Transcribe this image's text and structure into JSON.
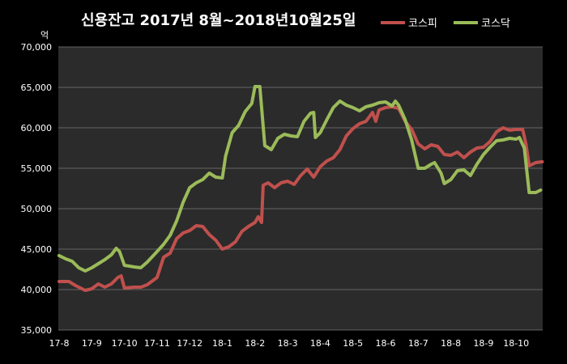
{
  "chart_data": {
    "type": "line",
    "title": "신용잔고 2017년 8월~2018년10월25일",
    "ylabel": "억",
    "xlabel": "",
    "ylim": [
      35000,
      70000
    ],
    "yticks": [
      35000,
      40000,
      45000,
      50000,
      55000,
      60000,
      65000,
      70000
    ],
    "ytick_labels": [
      "35,000",
      "40,000",
      "45,000",
      "50,000",
      "55,000",
      "60,000",
      "65,000",
      "70,000"
    ],
    "categories": [
      "17-8",
      "17-9",
      "17-10",
      "17-11",
      "17-12",
      "18-1",
      "18-2",
      "18-3",
      "18-4",
      "18-5",
      "18-6",
      "18-7",
      "18-8",
      "18-9",
      "18-10"
    ],
    "grid": true,
    "legend_position": "top-right",
    "series": [
      {
        "name": "코스피",
        "color": "#c0504d",
        "values": [
          [
            0.0,
            41000
          ],
          [
            0.3,
            41000
          ],
          [
            0.5,
            40500
          ],
          [
            0.8,
            39900
          ],
          [
            1.0,
            40100
          ],
          [
            1.2,
            40700
          ],
          [
            1.4,
            40300
          ],
          [
            1.6,
            40700
          ],
          [
            1.8,
            41500
          ],
          [
            1.9,
            41700
          ],
          [
            2.0,
            40200
          ],
          [
            2.3,
            40300
          ],
          [
            2.5,
            40300
          ],
          [
            2.7,
            40600
          ],
          [
            3.0,
            41500
          ],
          [
            3.2,
            44000
          ],
          [
            3.4,
            44500
          ],
          [
            3.6,
            46300
          ],
          [
            3.8,
            47000
          ],
          [
            4.0,
            47300
          ],
          [
            4.2,
            47900
          ],
          [
            4.4,
            47800
          ],
          [
            4.6,
            46800
          ],
          [
            4.8,
            46100
          ],
          [
            5.0,
            45000
          ],
          [
            5.2,
            45300
          ],
          [
            5.4,
            45900
          ],
          [
            5.6,
            47200
          ],
          [
            5.8,
            47800
          ],
          [
            6.0,
            48300
          ],
          [
            6.1,
            49000
          ],
          [
            6.2,
            48300
          ],
          [
            6.25,
            52900
          ],
          [
            6.4,
            53200
          ],
          [
            6.6,
            52600
          ],
          [
            6.8,
            53200
          ],
          [
            7.0,
            53400
          ],
          [
            7.2,
            53000
          ],
          [
            7.4,
            54100
          ],
          [
            7.6,
            54900
          ],
          [
            7.8,
            53900
          ],
          [
            8.0,
            55200
          ],
          [
            8.2,
            55900
          ],
          [
            8.4,
            56300
          ],
          [
            8.6,
            57300
          ],
          [
            8.8,
            59000
          ],
          [
            9.0,
            59900
          ],
          [
            9.2,
            60500
          ],
          [
            9.4,
            60800
          ],
          [
            9.6,
            61900
          ],
          [
            9.7,
            60800
          ],
          [
            9.8,
            62200
          ],
          [
            10.0,
            62500
          ],
          [
            10.2,
            62600
          ],
          [
            10.4,
            62400
          ],
          [
            10.6,
            60800
          ],
          [
            10.8,
            59800
          ],
          [
            11.0,
            58000
          ],
          [
            11.2,
            57400
          ],
          [
            11.4,
            57900
          ],
          [
            11.6,
            57700
          ],
          [
            11.8,
            56700
          ],
          [
            12.0,
            56600
          ],
          [
            12.2,
            57000
          ],
          [
            12.4,
            56300
          ],
          [
            12.6,
            57000
          ],
          [
            12.8,
            57500
          ],
          [
            13.0,
            57600
          ],
          [
            13.2,
            58300
          ],
          [
            13.4,
            59500
          ],
          [
            13.6,
            60000
          ],
          [
            13.8,
            59700
          ],
          [
            14.0,
            59800
          ],
          [
            14.2,
            59800
          ],
          [
            14.3,
            58000
          ],
          [
            14.4,
            55300
          ],
          [
            14.6,
            55700
          ],
          [
            14.8,
            55800
          ]
        ]
      },
      {
        "name": "코스닥",
        "color": "#9bbb59",
        "values": [
          [
            0.0,
            44200
          ],
          [
            0.2,
            43800
          ],
          [
            0.4,
            43500
          ],
          [
            0.6,
            42700
          ],
          [
            0.8,
            42300
          ],
          [
            1.0,
            42700
          ],
          [
            1.2,
            43200
          ],
          [
            1.4,
            43700
          ],
          [
            1.6,
            44300
          ],
          [
            1.75,
            45100
          ],
          [
            1.85,
            44700
          ],
          [
            2.0,
            43000
          ],
          [
            2.3,
            42800
          ],
          [
            2.5,
            42700
          ],
          [
            2.7,
            43400
          ],
          [
            3.0,
            44700
          ],
          [
            3.2,
            45600
          ],
          [
            3.4,
            46700
          ],
          [
            3.6,
            48500
          ],
          [
            3.8,
            50800
          ],
          [
            4.0,
            52600
          ],
          [
            4.2,
            53200
          ],
          [
            4.4,
            53600
          ],
          [
            4.6,
            54400
          ],
          [
            4.8,
            53900
          ],
          [
            5.0,
            53800
          ],
          [
            5.1,
            56500
          ],
          [
            5.3,
            59400
          ],
          [
            5.5,
            60300
          ],
          [
            5.7,
            62000
          ],
          [
            5.9,
            63000
          ],
          [
            6.0,
            65100
          ],
          [
            6.15,
            65100
          ],
          [
            6.3,
            57800
          ],
          [
            6.5,
            57300
          ],
          [
            6.7,
            58700
          ],
          [
            6.9,
            59200
          ],
          [
            7.1,
            59000
          ],
          [
            7.3,
            58900
          ],
          [
            7.5,
            60800
          ],
          [
            7.7,
            61800
          ],
          [
            7.8,
            61900
          ],
          [
            7.85,
            58800
          ],
          [
            8.0,
            59400
          ],
          [
            8.2,
            61000
          ],
          [
            8.4,
            62500
          ],
          [
            8.6,
            63300
          ],
          [
            8.8,
            62800
          ],
          [
            9.0,
            62500
          ],
          [
            9.2,
            62100
          ],
          [
            9.4,
            62600
          ],
          [
            9.6,
            62800
          ],
          [
            9.8,
            63100
          ],
          [
            10.0,
            63200
          ],
          [
            10.2,
            62700
          ],
          [
            10.3,
            63300
          ],
          [
            10.4,
            62800
          ],
          [
            10.6,
            61000
          ],
          [
            10.8,
            58500
          ],
          [
            11.0,
            55000
          ],
          [
            11.2,
            55000
          ],
          [
            11.4,
            55500
          ],
          [
            11.5,
            55700
          ],
          [
            11.7,
            54400
          ],
          [
            11.8,
            53100
          ],
          [
            12.0,
            53600
          ],
          [
            12.2,
            54700
          ],
          [
            12.4,
            54800
          ],
          [
            12.6,
            54100
          ],
          [
            12.8,
            55500
          ],
          [
            13.0,
            56700
          ],
          [
            13.2,
            57600
          ],
          [
            13.4,
            58400
          ],
          [
            13.6,
            58500
          ],
          [
            13.8,
            58700
          ],
          [
            14.0,
            58600
          ],
          [
            14.1,
            58800
          ],
          [
            14.25,
            57500
          ],
          [
            14.4,
            52000
          ],
          [
            14.6,
            52000
          ],
          [
            14.75,
            52300
          ]
        ]
      }
    ]
  }
}
